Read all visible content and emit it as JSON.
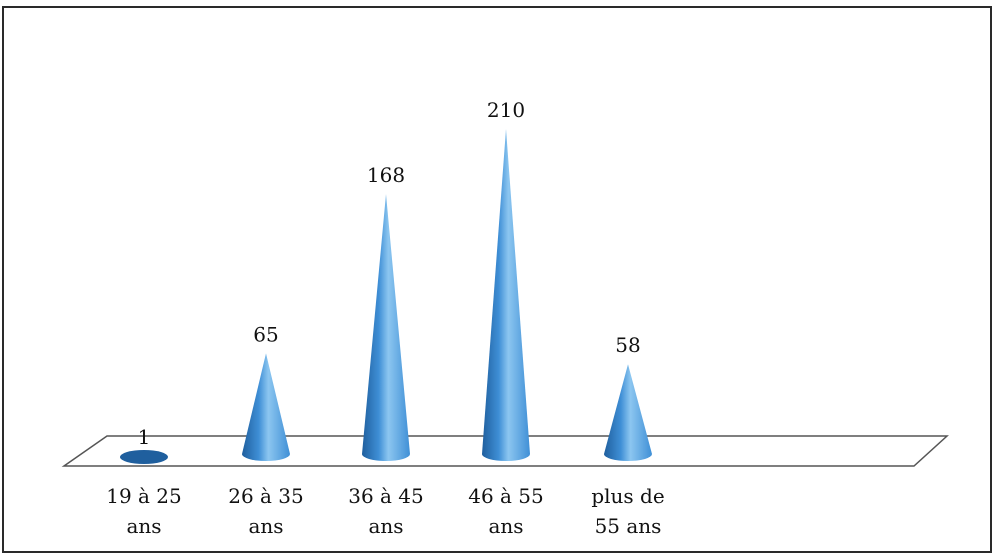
{
  "chart_data": {
    "type": "bar",
    "bar_shape": "cone",
    "style": "3d",
    "categories": [
      [
        "19 à 25",
        "ans"
      ],
      [
        "26 à 35",
        "ans"
      ],
      [
        "36 à 45",
        "ans"
      ],
      [
        "46 à 55",
        "ans"
      ],
      [
        "plus de",
        "55 ans"
      ]
    ],
    "values": [
      1,
      65,
      168,
      210,
      58
    ],
    "data_labels": [
      "1",
      "65",
      "168",
      "210",
      "58"
    ],
    "ylim": [
      0,
      210
    ],
    "grid": false,
    "legend": "none",
    "colors": {
      "cone_dark": "#1f5f9e",
      "cone_mid": "#3f8fd6",
      "cone_light": "#8cc6f0",
      "floor_stroke": "#555555"
    }
  }
}
